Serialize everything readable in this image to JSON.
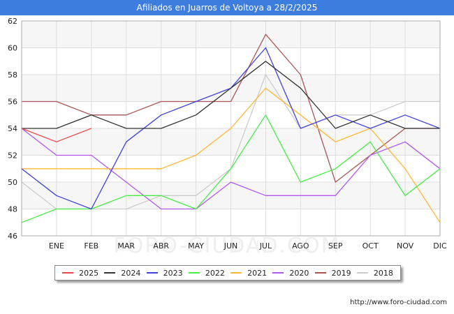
{
  "header": {
    "title": "Afiliados en Juarros de Voltoya a 28/2/2025"
  },
  "footer": {
    "source": "http://www.foro-ciudad.com"
  },
  "watermark": "FORO-CIUDAD.COM",
  "chart_data": {
    "type": "line",
    "title": "Afiliados en Juarros de Voltoya a 28/2/2025",
    "xlabel": "",
    "ylabel": "",
    "categories": [
      "",
      "ENE",
      "FEB",
      "MAR",
      "ABR",
      "MAY",
      "JUN",
      "JUL",
      "AGO",
      "SEP",
      "OCT",
      "NOV",
      "DIC"
    ],
    "ylim": [
      46,
      62
    ],
    "yticks": [
      46,
      48,
      50,
      52,
      54,
      56,
      58,
      60,
      62
    ],
    "grid": true,
    "legend_position": "bottom",
    "series": [
      {
        "name": "2025",
        "color": "#e8474b",
        "values": [
          54,
          53,
          54,
          null,
          null,
          null,
          null,
          null,
          null,
          null,
          null,
          null,
          null
        ]
      },
      {
        "name": "2024",
        "color": "#333333",
        "values": [
          54,
          54,
          55,
          54,
          54,
          55,
          57,
          59,
          57,
          54,
          55,
          54,
          54
        ]
      },
      {
        "name": "2023",
        "color": "#4040dd",
        "values": [
          51,
          49,
          48,
          53,
          55,
          56,
          57,
          60,
          54,
          55,
          54,
          55,
          54
        ]
      },
      {
        "name": "2022",
        "color": "#44ee44",
        "values": [
          47,
          48,
          48,
          49,
          49,
          48,
          51,
          55,
          50,
          51,
          53,
          49,
          51
        ]
      },
      {
        "name": "2021",
        "color": "#ffb733",
        "values": [
          51,
          51,
          51,
          51,
          51,
          52,
          54,
          57,
          55,
          53,
          54,
          51,
          47
        ]
      },
      {
        "name": "2020",
        "color": "#b058ee",
        "values": [
          54,
          52,
          52,
          50,
          48,
          48,
          50,
          49,
          49,
          49,
          52,
          53,
          51
        ]
      },
      {
        "name": "2019",
        "color": "#aa5555",
        "values": [
          56,
          56,
          55,
          55,
          56,
          56,
          56,
          61,
          58,
          50,
          52,
          54,
          54
        ]
      },
      {
        "name": "2018",
        "color": "#cccccc",
        "values": [
          50,
          48,
          48,
          48,
          49,
          49,
          51,
          58,
          54,
          55,
          55,
          56,
          56
        ]
      }
    ]
  }
}
